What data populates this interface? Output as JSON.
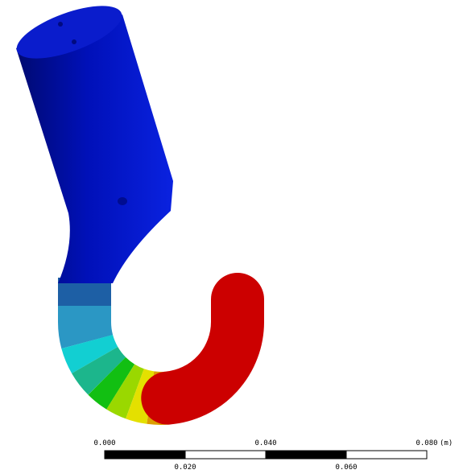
{
  "scale_bar": {
    "top_labels": [
      "0.000",
      "0.040",
      "0.080"
    ],
    "unit": "(m)",
    "bottom_labels": [
      "0.020",
      "0.060"
    ]
  }
}
